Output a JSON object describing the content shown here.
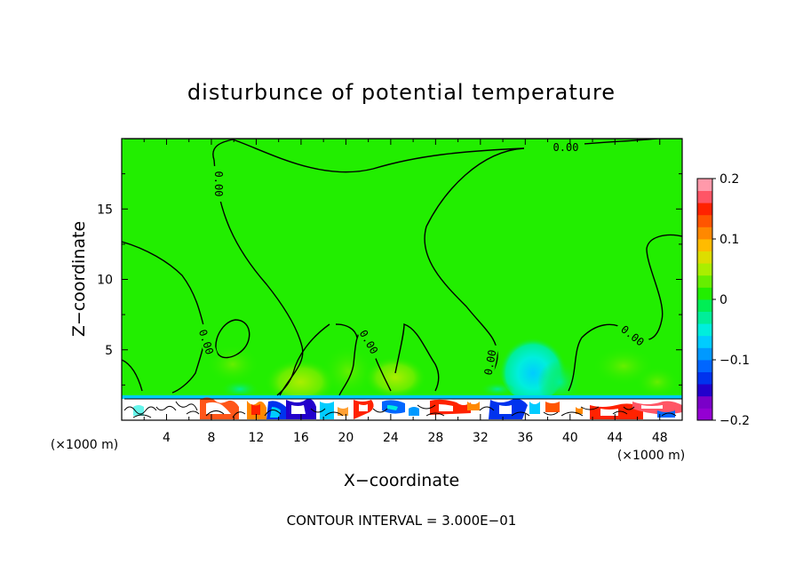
{
  "chart_data": {
    "type": "heatmap",
    "title": "disturbunce of potential temperature",
    "xlabel": "X−coordinate",
    "ylabel": "Z−coordinate",
    "x_unit_left": "(×1000 m)",
    "x_unit_right": "(×1000 m)",
    "xlim": [
      0,
      50
    ],
    "ylim": [
      0,
      20
    ],
    "x_ticks": [
      4,
      8,
      12,
      16,
      20,
      24,
      28,
      32,
      36,
      40,
      44,
      48
    ],
    "y_ticks": [
      5,
      10,
      15
    ],
    "contour_interval_text": "CONTOUR INTERVAL = 3.000E−01",
    "contour_label": "0.00",
    "colorbar": {
      "range": [
        -0.2,
        0.2
      ],
      "tick_values": [
        0.2,
        0.1,
        0,
        -0.1,
        -0.2
      ],
      "tick_labels": [
        "0.2",
        "0.1",
        "0",
        "−0.1",
        "−0.2"
      ],
      "colors": [
        "#9400d3",
        "#7a00c8",
        "#2200cc",
        "#0033ee",
        "#0066ff",
        "#0099ff",
        "#00ccff",
        "#00eedd",
        "#00ee99",
        "#00ee55",
        "#22ee00",
        "#66ee00",
        "#aaee00",
        "#dddd00",
        "#ffbb00",
        "#ff8800",
        "#ff5500",
        "#ff2200",
        "#ff5566",
        "#ff99aa"
      ]
    },
    "background_value": 0.0,
    "warm_anomalies": [
      {
        "x": 10,
        "z": 4,
        "value": 0.02
      },
      {
        "x": 16,
        "z": 3,
        "value": 0.05
      },
      {
        "x": 20,
        "z": 3.5,
        "value": 0.03
      },
      {
        "x": 24,
        "z": 3,
        "value": 0.03
      },
      {
        "x": 45,
        "z": 4,
        "value": 0.04
      }
    ],
    "cool_anomalies": [
      {
        "x": 36,
        "z": 4,
        "value": -0.06
      },
      {
        "x": 38,
        "z": 3,
        "value": -0.05
      },
      {
        "x": 15,
        "z": 2.8,
        "value": -0.03
      }
    ]
  }
}
